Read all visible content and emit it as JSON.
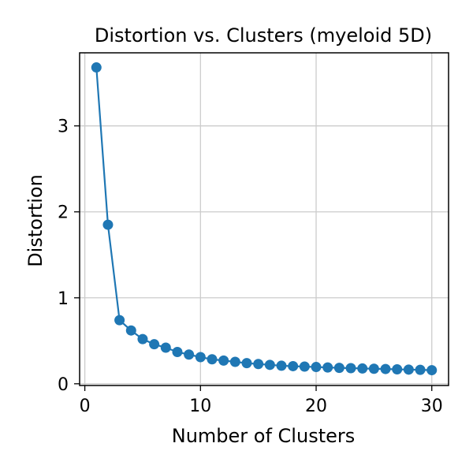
{
  "chart_data": {
    "type": "line",
    "title": "Distortion vs. Clusters (myeloid 5D)",
    "xlabel": "Number of Clusters",
    "ylabel": "Distortion",
    "xlim": [
      -0.45,
      31.45
    ],
    "ylim": [
      -0.02,
      3.85
    ],
    "xticks": [
      0,
      10,
      20,
      30
    ],
    "yticks": [
      0,
      1,
      2,
      3
    ],
    "grid": true,
    "line_color": "#1f77b4",
    "marker": "circle",
    "x": [
      1,
      2,
      3,
      4,
      5,
      6,
      7,
      8,
      9,
      10,
      11,
      12,
      13,
      14,
      15,
      16,
      17,
      18,
      19,
      20,
      21,
      22,
      23,
      24,
      25,
      26,
      27,
      28,
      29,
      30
    ],
    "y": [
      3.68,
      1.85,
      0.74,
      0.62,
      0.52,
      0.46,
      0.42,
      0.37,
      0.34,
      0.31,
      0.285,
      0.27,
      0.255,
      0.24,
      0.23,
      0.22,
      0.21,
      0.205,
      0.2,
      0.195,
      0.19,
      0.185,
      0.182,
      0.178,
      0.175,
      0.172,
      0.168,
      0.165,
      0.162,
      0.158
    ]
  }
}
